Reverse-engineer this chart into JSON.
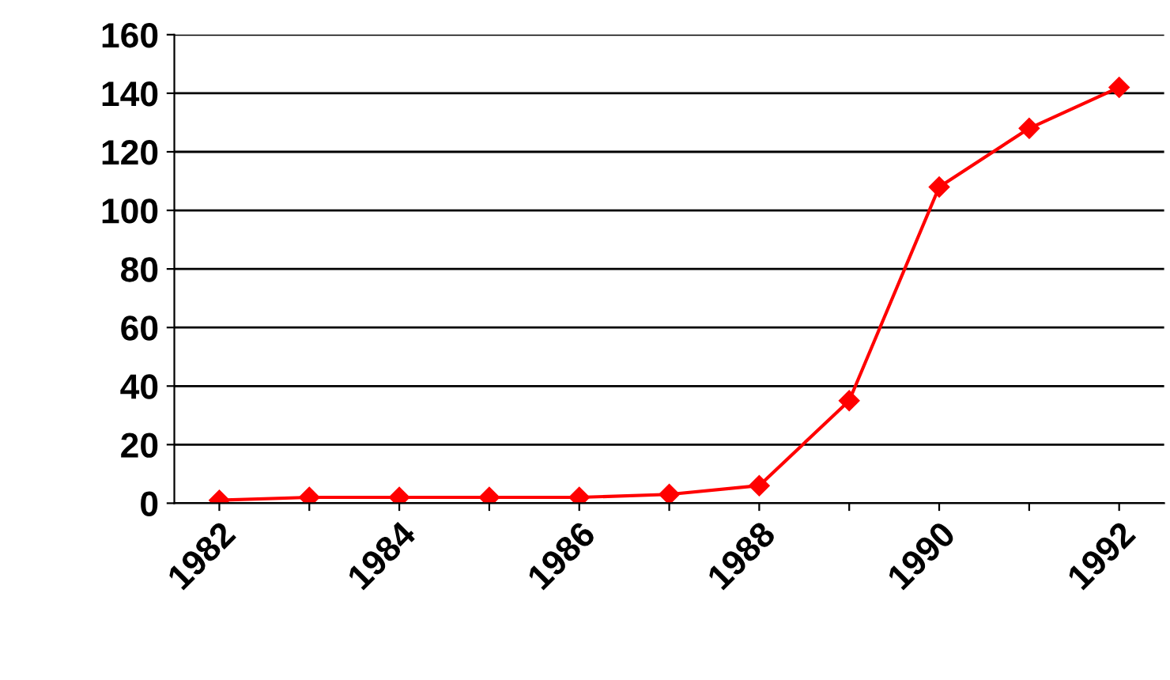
{
  "chart_data": {
    "type": "line",
    "categories": [
      "1982",
      null,
      "1984",
      null,
      "1986",
      null,
      "1988",
      null,
      "1990",
      null,
      "1992"
    ],
    "series": [
      {
        "color": "#ff0000",
        "values": [
          1,
          2,
          2,
          2,
          2,
          3,
          6,
          35,
          108,
          128,
          142
        ]
      }
    ],
    "ylim": [
      0,
      160
    ],
    "yticks": [
      0,
      20,
      40,
      60,
      80,
      100,
      120,
      140,
      160
    ],
    "grid": "y",
    "marker": "diamond",
    "line_style": "solid",
    "legend": false
  }
}
